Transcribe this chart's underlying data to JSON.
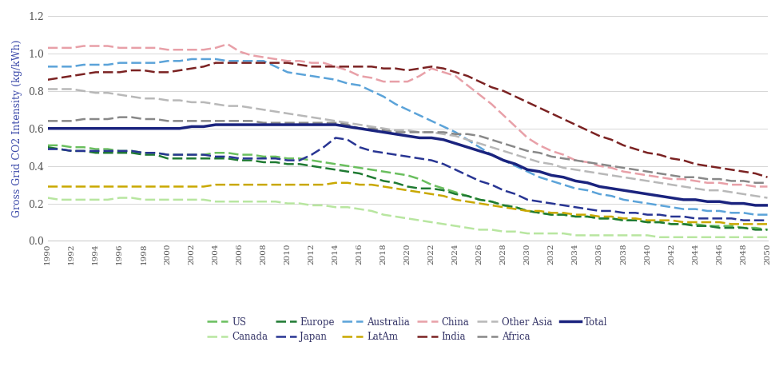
{
  "years": [
    1990,
    1991,
    1992,
    1993,
    1994,
    1995,
    1996,
    1997,
    1998,
    1999,
    2000,
    2001,
    2002,
    2003,
    2004,
    2005,
    2006,
    2007,
    2008,
    2009,
    2010,
    2011,
    2012,
    2013,
    2014,
    2015,
    2016,
    2017,
    2018,
    2019,
    2020,
    2021,
    2022,
    2023,
    2024,
    2025,
    2026,
    2027,
    2028,
    2029,
    2030,
    2031,
    2032,
    2033,
    2034,
    2035,
    2036,
    2037,
    2038,
    2039,
    2040,
    2041,
    2042,
    2043,
    2044,
    2045,
    2046,
    2047,
    2048,
    2049,
    2050
  ],
  "series": {
    "US": [
      0.51,
      0.51,
      0.5,
      0.5,
      0.49,
      0.49,
      0.48,
      0.48,
      0.47,
      0.47,
      0.46,
      0.46,
      0.46,
      0.46,
      0.47,
      0.47,
      0.46,
      0.46,
      0.45,
      0.45,
      0.44,
      0.44,
      0.43,
      0.42,
      0.41,
      0.4,
      0.39,
      0.38,
      0.37,
      0.36,
      0.35,
      0.33,
      0.3,
      0.28,
      0.26,
      0.24,
      0.22,
      0.21,
      0.19,
      0.18,
      0.16,
      0.15,
      0.14,
      0.14,
      0.13,
      0.13,
      0.12,
      0.12,
      0.11,
      0.11,
      0.1,
      0.1,
      0.09,
      0.09,
      0.09,
      0.08,
      0.08,
      0.08,
      0.07,
      0.07,
      0.06
    ],
    "Canada": [
      0.23,
      0.22,
      0.22,
      0.22,
      0.22,
      0.22,
      0.23,
      0.23,
      0.22,
      0.22,
      0.22,
      0.22,
      0.22,
      0.22,
      0.21,
      0.21,
      0.21,
      0.21,
      0.21,
      0.21,
      0.2,
      0.2,
      0.19,
      0.19,
      0.18,
      0.18,
      0.17,
      0.16,
      0.14,
      0.13,
      0.12,
      0.11,
      0.1,
      0.09,
      0.08,
      0.07,
      0.06,
      0.06,
      0.05,
      0.05,
      0.04,
      0.04,
      0.04,
      0.04,
      0.03,
      0.03,
      0.03,
      0.03,
      0.03,
      0.03,
      0.03,
      0.02,
      0.02,
      0.02,
      0.02,
      0.02,
      0.02,
      0.02,
      0.02,
      0.02,
      0.02
    ],
    "Europe": [
      0.5,
      0.49,
      0.48,
      0.48,
      0.47,
      0.47,
      0.47,
      0.47,
      0.46,
      0.46,
      0.44,
      0.44,
      0.44,
      0.44,
      0.44,
      0.44,
      0.43,
      0.43,
      0.42,
      0.42,
      0.41,
      0.41,
      0.4,
      0.39,
      0.38,
      0.37,
      0.36,
      0.34,
      0.32,
      0.31,
      0.29,
      0.28,
      0.28,
      0.27,
      0.25,
      0.24,
      0.22,
      0.21,
      0.19,
      0.18,
      0.16,
      0.15,
      0.14,
      0.14,
      0.13,
      0.13,
      0.12,
      0.12,
      0.11,
      0.11,
      0.1,
      0.1,
      0.09,
      0.09,
      0.08,
      0.08,
      0.07,
      0.07,
      0.07,
      0.06,
      0.06
    ],
    "Japan": [
      0.49,
      0.49,
      0.48,
      0.48,
      0.48,
      0.48,
      0.48,
      0.48,
      0.47,
      0.47,
      0.46,
      0.46,
      0.46,
      0.46,
      0.45,
      0.45,
      0.44,
      0.44,
      0.44,
      0.44,
      0.43,
      0.43,
      0.46,
      0.5,
      0.55,
      0.54,
      0.5,
      0.48,
      0.47,
      0.46,
      0.45,
      0.44,
      0.43,
      0.41,
      0.38,
      0.35,
      0.32,
      0.3,
      0.27,
      0.25,
      0.22,
      0.21,
      0.2,
      0.19,
      0.18,
      0.17,
      0.16,
      0.16,
      0.15,
      0.15,
      0.14,
      0.14,
      0.13,
      0.13,
      0.12,
      0.12,
      0.12,
      0.12,
      0.11,
      0.11,
      0.11
    ],
    "Australia": [
      0.93,
      0.93,
      0.93,
      0.94,
      0.94,
      0.94,
      0.95,
      0.95,
      0.95,
      0.95,
      0.96,
      0.96,
      0.97,
      0.97,
      0.97,
      0.96,
      0.96,
      0.96,
      0.96,
      0.93,
      0.9,
      0.89,
      0.88,
      0.87,
      0.86,
      0.84,
      0.83,
      0.8,
      0.77,
      0.73,
      0.7,
      0.67,
      0.64,
      0.61,
      0.58,
      0.54,
      0.5,
      0.46,
      0.43,
      0.4,
      0.37,
      0.34,
      0.32,
      0.3,
      0.28,
      0.27,
      0.25,
      0.24,
      0.22,
      0.21,
      0.2,
      0.19,
      0.18,
      0.17,
      0.17,
      0.16,
      0.16,
      0.15,
      0.15,
      0.14,
      0.14
    ],
    "LatAm": [
      0.29,
      0.29,
      0.29,
      0.29,
      0.29,
      0.29,
      0.29,
      0.29,
      0.29,
      0.29,
      0.29,
      0.29,
      0.29,
      0.29,
      0.3,
      0.3,
      0.3,
      0.3,
      0.3,
      0.3,
      0.3,
      0.3,
      0.3,
      0.3,
      0.31,
      0.31,
      0.3,
      0.3,
      0.29,
      0.28,
      0.27,
      0.26,
      0.25,
      0.24,
      0.22,
      0.21,
      0.2,
      0.19,
      0.18,
      0.17,
      0.16,
      0.16,
      0.15,
      0.15,
      0.14,
      0.14,
      0.13,
      0.13,
      0.12,
      0.12,
      0.11,
      0.11,
      0.11,
      0.1,
      0.1,
      0.1,
      0.1,
      0.09,
      0.09,
      0.09,
      0.09
    ],
    "China": [
      1.03,
      1.03,
      1.03,
      1.04,
      1.04,
      1.04,
      1.03,
      1.03,
      1.03,
      1.03,
      1.02,
      1.02,
      1.02,
      1.02,
      1.03,
      1.05,
      1.01,
      0.99,
      0.98,
      0.97,
      0.96,
      0.96,
      0.95,
      0.95,
      0.93,
      0.91,
      0.88,
      0.87,
      0.85,
      0.85,
      0.85,
      0.88,
      0.92,
      0.9,
      0.88,
      0.83,
      0.78,
      0.73,
      0.67,
      0.61,
      0.55,
      0.51,
      0.48,
      0.46,
      0.43,
      0.42,
      0.4,
      0.39,
      0.37,
      0.36,
      0.35,
      0.34,
      0.33,
      0.33,
      0.32,
      0.31,
      0.31,
      0.3,
      0.3,
      0.29,
      0.29
    ],
    "India": [
      0.86,
      0.87,
      0.88,
      0.89,
      0.9,
      0.9,
      0.9,
      0.91,
      0.91,
      0.9,
      0.9,
      0.91,
      0.92,
      0.93,
      0.95,
      0.95,
      0.95,
      0.95,
      0.95,
      0.95,
      0.95,
      0.94,
      0.93,
      0.93,
      0.93,
      0.93,
      0.93,
      0.93,
      0.92,
      0.92,
      0.91,
      0.92,
      0.93,
      0.92,
      0.9,
      0.88,
      0.85,
      0.82,
      0.8,
      0.77,
      0.74,
      0.71,
      0.68,
      0.65,
      0.62,
      0.59,
      0.56,
      0.54,
      0.51,
      0.49,
      0.47,
      0.46,
      0.44,
      0.43,
      0.41,
      0.4,
      0.39,
      0.38,
      0.37,
      0.36,
      0.34
    ],
    "Other Asia": [
      0.81,
      0.81,
      0.81,
      0.8,
      0.79,
      0.79,
      0.78,
      0.77,
      0.76,
      0.76,
      0.75,
      0.75,
      0.74,
      0.74,
      0.73,
      0.72,
      0.72,
      0.71,
      0.7,
      0.69,
      0.68,
      0.67,
      0.66,
      0.65,
      0.64,
      0.63,
      0.62,
      0.61,
      0.6,
      0.59,
      0.59,
      0.58,
      0.58,
      0.57,
      0.56,
      0.54,
      0.52,
      0.5,
      0.48,
      0.46,
      0.44,
      0.42,
      0.41,
      0.39,
      0.38,
      0.37,
      0.36,
      0.35,
      0.34,
      0.33,
      0.32,
      0.31,
      0.3,
      0.29,
      0.28,
      0.27,
      0.27,
      0.26,
      0.25,
      0.24,
      0.23
    ],
    "Africa": [
      0.64,
      0.64,
      0.64,
      0.65,
      0.65,
      0.65,
      0.66,
      0.66,
      0.65,
      0.65,
      0.64,
      0.64,
      0.64,
      0.64,
      0.64,
      0.64,
      0.64,
      0.64,
      0.63,
      0.63,
      0.63,
      0.63,
      0.63,
      0.63,
      0.63,
      0.62,
      0.6,
      0.6,
      0.59,
      0.58,
      0.58,
      0.58,
      0.58,
      0.58,
      0.57,
      0.57,
      0.56,
      0.54,
      0.52,
      0.5,
      0.48,
      0.47,
      0.45,
      0.44,
      0.43,
      0.42,
      0.41,
      0.4,
      0.39,
      0.38,
      0.37,
      0.36,
      0.35,
      0.34,
      0.34,
      0.33,
      0.33,
      0.32,
      0.32,
      0.31,
      0.31
    ],
    "Total": [
      0.6,
      0.6,
      0.6,
      0.6,
      0.6,
      0.6,
      0.6,
      0.6,
      0.6,
      0.6,
      0.6,
      0.6,
      0.61,
      0.61,
      0.62,
      0.62,
      0.62,
      0.62,
      0.62,
      0.62,
      0.62,
      0.62,
      0.62,
      0.62,
      0.62,
      0.61,
      0.6,
      0.59,
      0.58,
      0.57,
      0.56,
      0.55,
      0.55,
      0.54,
      0.52,
      0.5,
      0.48,
      0.46,
      0.43,
      0.41,
      0.38,
      0.37,
      0.35,
      0.34,
      0.32,
      0.31,
      0.29,
      0.28,
      0.27,
      0.26,
      0.25,
      0.24,
      0.23,
      0.22,
      0.22,
      0.21,
      0.21,
      0.2,
      0.2,
      0.19,
      0.19
    ]
  },
  "colors": {
    "US": "#6abf5e",
    "Canada": "#b8e6a0",
    "Europe": "#1f7a32",
    "Japan": "#283593",
    "Australia": "#5ba3d9",
    "LatAm": "#c9a800",
    "China": "#e8a0a8",
    "India": "#7b2222",
    "Other Asia": "#b8b8b8",
    "Africa": "#888888",
    "Total": "#1a237e"
  },
  "ylabel": "Gross Grid CO2 Intensity (kg/kWh)",
  "ylim": [
    0.0,
    1.2
  ],
  "yticks": [
    0.0,
    0.2,
    0.4,
    0.6,
    0.8,
    1.0,
    1.2
  ],
  "legend_row1": [
    "US",
    "Canada",
    "Europe",
    "Japan",
    "Australia",
    "LatAm"
  ],
  "legend_row2": [
    "China",
    "India",
    "Other Asia",
    "Africa",
    "Total"
  ],
  "text_color": "#3c4aaa",
  "background_color": "#ffffff"
}
